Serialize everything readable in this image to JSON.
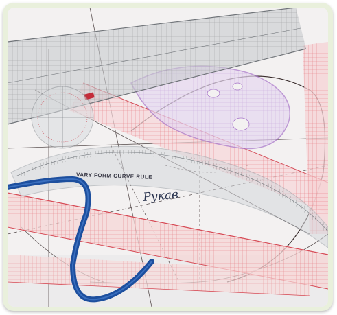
{
  "photo": {
    "subject": "pattern drafting rulers and flexible curve on paper",
    "colors": {
      "frame": "#e9f0dc",
      "paper": "#f1efef",
      "flex_curve": "#1f55a8",
      "red_ruler": "#e0727a",
      "clear_ruler": "#c9ccd0",
      "purple_curve": "#b28ad1"
    },
    "labels": {
      "curve_rule": "VARY FORM CURVE RULE",
      "handwritten": "Рукав"
    }
  }
}
